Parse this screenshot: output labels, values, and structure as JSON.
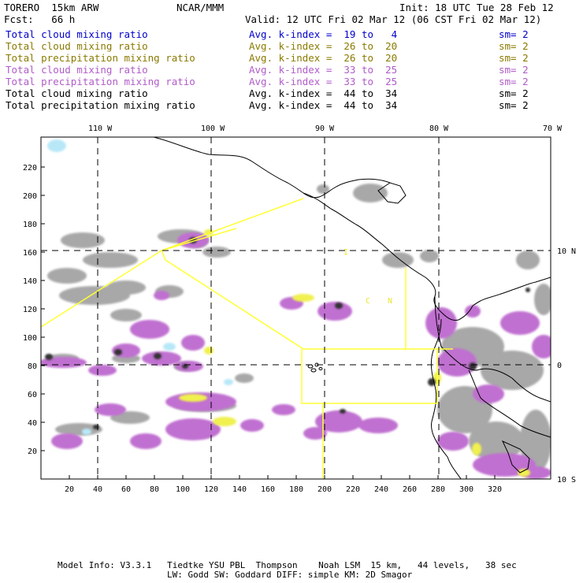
{
  "header": {
    "model": "TORERO  15km ARW",
    "org": "NCAR/MMM",
    "init": "Init: 18 UTC Tue 28 Feb 12",
    "fcst": "Fcst:   66 h",
    "valid": "Valid: 12 UTC Fri 02 Mar 12 (06 CST Fri 02 Mar 12)"
  },
  "legend": [
    {
      "field": "Total cloud mixing ratio",
      "kindex": "Avg. k-index =  19 to   4",
      "sm": "sm= 2",
      "color": "#0000cc"
    },
    {
      "field": "Total cloud mixing ratio",
      "kindex": "Avg. k-index =  26 to  20",
      "sm": "sm= 2",
      "color": "#8a7a00"
    },
    {
      "field": "Total precipitation mixing ratio",
      "kindex": "Avg. k-index =  26 to  20",
      "sm": "sm= 2",
      "color": "#8a7a00"
    },
    {
      "field": "Total cloud mixing ratio",
      "kindex": "Avg. k-index =  33 to  25",
      "sm": "sm= 2",
      "color": "#b05cc8"
    },
    {
      "field": "Total precipitation mixing ratio",
      "kindex": "Avg. k-index =  33 to  25",
      "sm": "sm= 2",
      "color": "#b05cc8"
    },
    {
      "field": "Total cloud mixing ratio",
      "kindex": "Avg. k-index =  44 to  34",
      "sm": "sm= 2",
      "color": "#000000"
    },
    {
      "field": "Total precipitation mixing ratio",
      "kindex": "Avg. k-index =  44 to  34",
      "sm": "sm= 2",
      "color": "#000000"
    }
  ],
  "axes": {
    "x_grid_ticks": [
      "20",
      "40",
      "60",
      "80",
      "100",
      "120",
      "140",
      "160",
      "180",
      "200",
      "220",
      "240",
      "260",
      "280",
      "300",
      "320"
    ],
    "y_grid_ticks": [
      "20",
      "40",
      "60",
      "80",
      "100",
      "120",
      "140",
      "160",
      "180",
      "200",
      "220"
    ],
    "lon_labels": [
      "110 W",
      "100 W",
      "90 W",
      "80 W",
      "70 W"
    ],
    "lat_labels": [
      "10 N",
      "0",
      "10 S"
    ]
  },
  "map_letters": [
    "I",
    "C",
    "N"
  ],
  "footer": {
    "line1": "Model Info: V3.3.1   Tiedtke YSU PBL  Thompson    Noah LSM  15 km,   44 levels,   38 sec",
    "line2": "LW: Godd SW: Goddard DIFF: simple KM: 2D Smagor"
  },
  "colors": {
    "gray": "#a8a8a8",
    "darkgray": "#707070",
    "black_cell": "#202020",
    "purple": "#c070d0",
    "yellow": "#f0f050",
    "lightblue": "#b8e8f8",
    "boundary": "#ffff33"
  }
}
